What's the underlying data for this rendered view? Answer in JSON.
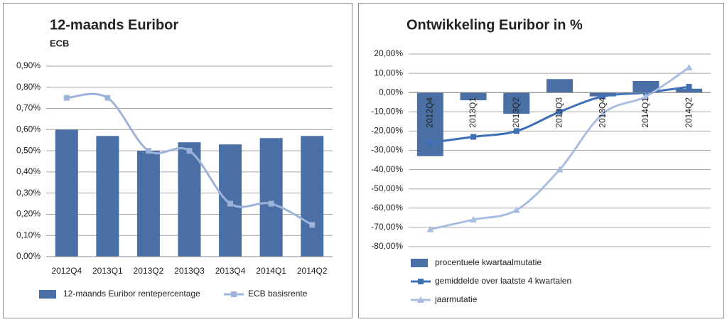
{
  "chart_data": [
    {
      "type": "bar",
      "title": "12-maands Euribor",
      "subtitle": "ECB",
      "categories": [
        "2012Q4",
        "2013Q1",
        "2013Q2",
        "2013Q3",
        "2013Q4",
        "2014Q1",
        "2014Q2"
      ],
      "series": [
        {
          "name": "12-maands Euribor rentepercentage",
          "type": "bar",
          "color": "#4a6fa5",
          "values": [
            0.6,
            0.57,
            0.5,
            0.54,
            0.53,
            0.56,
            0.57
          ]
        },
        {
          "name": "ECB basisrente",
          "type": "line",
          "marker": "square",
          "color": "#9db3d9",
          "values": [
            0.75,
            0.75,
            0.5,
            0.5,
            0.25,
            0.25,
            0.15
          ]
        }
      ],
      "ylim": [
        0,
        0.9
      ],
      "yticks": [
        {
          "value": 0,
          "label": "0,00%"
        },
        {
          "value": 0.1,
          "label": "0,10%"
        },
        {
          "value": 0.2,
          "label": "0,20%"
        },
        {
          "value": 0.3,
          "label": "0,30%"
        },
        {
          "value": 0.4,
          "label": "0,40%"
        },
        {
          "value": 0.5,
          "label": "0,50%"
        },
        {
          "value": 0.6,
          "label": "0,60%"
        },
        {
          "value": 0.7,
          "label": "0,70%"
        },
        {
          "value": 0.8,
          "label": "0,80%"
        },
        {
          "value": 0.9,
          "label": "0,90%"
        }
      ],
      "grid": true
    },
    {
      "type": "bar",
      "title": "Ontwikkeling Euribor in %",
      "categories": [
        "2012Q4",
        "2013Q1",
        "2013Q2",
        "2013Q3",
        "2013Q4",
        "2014Q1",
        "2014Q2"
      ],
      "series": [
        {
          "name": "procentuele kwartaalmutatie",
          "type": "bar",
          "color": "#4a6fa5",
          "values": [
            -33,
            -4,
            -11,
            7,
            -2,
            6,
            2
          ]
        },
        {
          "name": "gemiddelde over laatste  4 kwartalen",
          "type": "line",
          "marker": "square",
          "color": "#3f6fb5",
          "values": [
            -26,
            -23,
            -20,
            -10,
            -2,
            0,
            3
          ]
        },
        {
          "name": "jaarmutatie",
          "type": "line",
          "marker": "triangle",
          "color": "#a9bde0",
          "values": [
            -71,
            -66,
            -61,
            -40,
            -11,
            -2,
            13
          ]
        }
      ],
      "ylim": [
        -80,
        20
      ],
      "yticks": [
        {
          "value": -80,
          "label": "-80,00%"
        },
        {
          "value": -70,
          "label": "-70,00%"
        },
        {
          "value": -60,
          "label": "-60,00%"
        },
        {
          "value": -50,
          "label": "-50,00%"
        },
        {
          "value": -40,
          "label": "-40,00%"
        },
        {
          "value": -30,
          "label": "-30,00%"
        },
        {
          "value": -20,
          "label": "-20,00%"
        },
        {
          "value": -10,
          "label": "-10,00%"
        },
        {
          "value": 0,
          "label": "0,00%"
        },
        {
          "value": 10,
          "label": "10,00%"
        },
        {
          "value": 20,
          "label": "20,00%"
        }
      ],
      "grid": true
    }
  ]
}
